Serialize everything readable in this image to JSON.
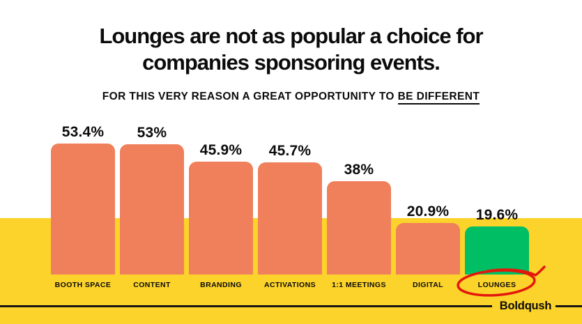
{
  "header": {
    "title_line1": "Lounges are not as popular a choice for",
    "title_line2": "companies sponsoring events.",
    "subtitle_prefix": "FOR THIS VERY REASON A GREAT OPPORTUNITY TO ",
    "subtitle_underlined": "BE DIFFERENT"
  },
  "chart_data": {
    "type": "bar",
    "title": "Lounges are not as popular a choice for companies sponsoring events.",
    "subtitle": "FOR THIS VERY REASON A GREAT OPPORTUNITY TO BE DIFFERENT",
    "categories": [
      "BOOTH SPACE",
      "CONTENT",
      "BRANDING",
      "ACTIVATIONS",
      "1:1 MEETINGS",
      "DIGITAL",
      "LOUNGES"
    ],
    "values": [
      53.4,
      53,
      45.9,
      45.7,
      38,
      20.9,
      19.6
    ],
    "value_labels": [
      "53.4%",
      "53%",
      "45.9%",
      "45.7%",
      "38%",
      "20.9%",
      "19.6%"
    ],
    "ylim": [
      0,
      58
    ],
    "grid": false,
    "legend": false,
    "bar_color": "#F0805B",
    "highlight_category": "LOUNGES",
    "highlight_color": "#00BE64",
    "annotation": "hand-drawn red circle around the LOUNGES axis label",
    "annotation_color": "#E3170C"
  },
  "footer": {
    "brand": "Boldpush",
    "brand_prefix": "Bold",
    "brand_flipped_letter": "p",
    "brand_suffix": "ush"
  },
  "colors": {
    "background_top": "#FFFFFF",
    "background_band": "#FCD32B",
    "bar_orange": "#F0805B",
    "bar_green": "#00BE64",
    "circle_red": "#E3170C",
    "text_black": "#0B0B0B"
  }
}
